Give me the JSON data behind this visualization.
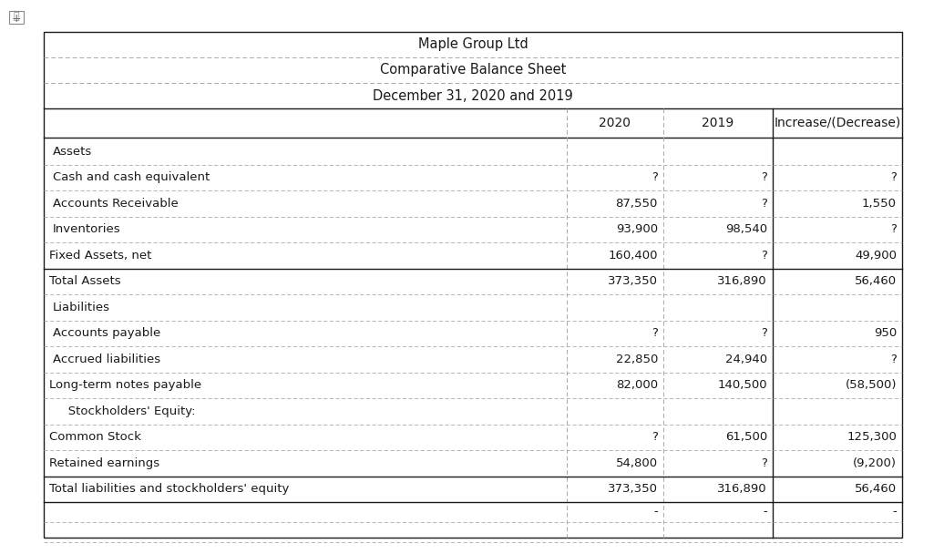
{
  "title_lines": [
    "Maple Group Ltd",
    "Comparative Balance Sheet",
    "December 31, 2020 and 2019"
  ],
  "rows": [
    {
      "label": "Assets",
      "indent": 4,
      "col1": "",
      "col2": "",
      "col3": "",
      "bold": false,
      "header": true,
      "top_border": false,
      "double_top": false
    },
    {
      "label": "Cash and cash equivalent",
      "indent": 4,
      "col1": "?",
      "col2": "?",
      "col3": "?",
      "bold": false,
      "header": false,
      "top_border": false,
      "double_top": false
    },
    {
      "label": "Accounts Receivable",
      "indent": 4,
      "col1": "87,550",
      "col2": "?",
      "col3": "1,550",
      "bold": false,
      "header": false,
      "top_border": false,
      "double_top": false
    },
    {
      "label": "Inventories",
      "indent": 4,
      "col1": "93,900",
      "col2": "98,540",
      "col3": "?",
      "bold": false,
      "header": false,
      "top_border": false,
      "double_top": false
    },
    {
      "label": "Fixed Assets, net",
      "indent": 0,
      "col1": "160,400",
      "col2": "?",
      "col3": "49,900",
      "bold": false,
      "header": false,
      "top_border": false,
      "double_top": false
    },
    {
      "label": "Total Assets",
      "indent": 0,
      "col1": "373,350",
      "col2": "316,890",
      "col3": "56,460",
      "bold": false,
      "header": false,
      "top_border": true,
      "double_top": false
    },
    {
      "label": "Liabilities",
      "indent": 4,
      "col1": "",
      "col2": "",
      "col3": "",
      "bold": false,
      "header": true,
      "top_border": false,
      "double_top": false
    },
    {
      "label": "Accounts payable",
      "indent": 4,
      "col1": "?",
      "col2": "?",
      "col3": "950",
      "bold": false,
      "header": false,
      "top_border": false,
      "double_top": false
    },
    {
      "label": "Accrued liabilities",
      "indent": 4,
      "col1": "22,850",
      "col2": "24,940",
      "col3": "?",
      "bold": false,
      "header": false,
      "top_border": false,
      "double_top": false
    },
    {
      "label": "Long-term notes payable",
      "indent": 0,
      "col1": "82,000",
      "col2": "140,500",
      "col3": "(58,500)",
      "bold": false,
      "header": false,
      "top_border": false,
      "double_top": false
    },
    {
      "label": "   Stockholders' Equity:",
      "indent": 8,
      "col1": "",
      "col2": "",
      "col3": "",
      "bold": false,
      "header": true,
      "top_border": false,
      "double_top": false
    },
    {
      "label": "Common Stock",
      "indent": 0,
      "col1": "?",
      "col2": "61,500",
      "col3": "125,300",
      "bold": false,
      "header": false,
      "top_border": false,
      "double_top": false
    },
    {
      "label": "Retained earnings",
      "indent": 0,
      "col1": "54,800",
      "col2": "?",
      "col3": "(9,200)",
      "bold": false,
      "header": false,
      "top_border": false,
      "double_top": false
    },
    {
      "label": "Total liabilities and stockholders' equity",
      "indent": 0,
      "col1": "373,350",
      "col2": "316,890",
      "col3": "56,460",
      "bold": false,
      "header": false,
      "top_border": true,
      "double_top": false
    }
  ],
  "footer": {
    "col1": "-",
    "col2": "-",
    "col3": "-"
  },
  "bg_color": "#ffffff",
  "border_color": "#1a1a1a",
  "dash_color": "#aaaaaa",
  "text_color": "#1a1a1a",
  "title_fs": 10.5,
  "header_fs": 10.0,
  "cell_fs": 9.5
}
